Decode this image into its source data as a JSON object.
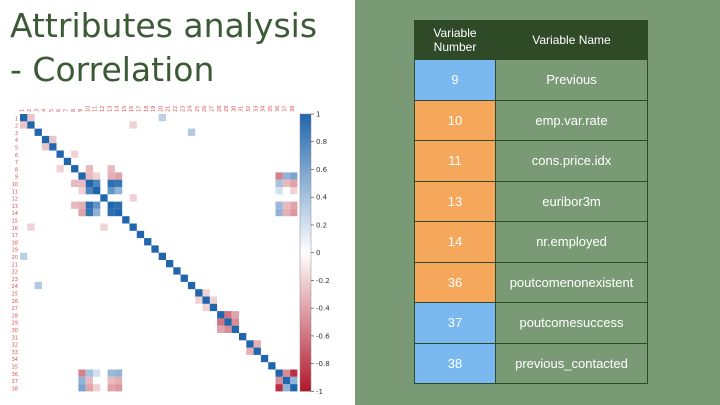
{
  "slide": {
    "title_line1": "Attributes analysis",
    "title_line2": "- Correlation"
  },
  "table": {
    "headers": {
      "number": "Variable Number",
      "name": "Variable Name"
    },
    "rows": [
      {
        "number": "9",
        "name": "Previous",
        "color": "#7ab8f0"
      },
      {
        "number": "10",
        "name": "emp.var.rate",
        "color": "#f5a75c"
      },
      {
        "number": "11",
        "name": "cons.price.idx",
        "color": "#f5a75c"
      },
      {
        "number": "13",
        "name": "euribor3m",
        "color": "#f5a75c"
      },
      {
        "number": "14",
        "name": "nr.employed",
        "color": "#f5a75c"
      },
      {
        "number": "36",
        "name": "poutcomenonexistent",
        "color": "#f5a75c"
      },
      {
        "number": "37",
        "name": "poutcomesuccess",
        "color": "#7ab8f0"
      },
      {
        "number": "38",
        "name": "previous_contacted",
        "color": "#7ab8f0"
      }
    ]
  },
  "chart_data": {
    "type": "heatmap",
    "labels": [
      "1",
      "2",
      "3",
      "4",
      "5",
      "6",
      "7",
      "8",
      "9",
      "10",
      "11",
      "12",
      "13",
      "14",
      "15",
      "16",
      "17",
      "18",
      "19",
      "20",
      "21",
      "22",
      "23",
      "24",
      "25",
      "26",
      "27",
      "28",
      "29",
      "30",
      "31",
      "32",
      "33",
      "34",
      "35",
      "36",
      "37",
      "38"
    ],
    "colorbar_ticks": [
      "1",
      "0.8",
      "0.6",
      "0.4",
      "0.2",
      "0",
      "-0.2",
      "-0.4",
      "-0.6",
      "-0.8",
      "-1"
    ],
    "colorbar_range": [
      -1,
      1
    ],
    "cells": [
      {
        "r": 9,
        "c": 10,
        "v": -0.3
      },
      {
        "r": 9,
        "c": 11,
        "v": -0.2
      },
      {
        "r": 9,
        "c": 13,
        "v": -0.35
      },
      {
        "r": 9,
        "c": 14,
        "v": -0.4
      },
      {
        "r": 9,
        "c": 36,
        "v": -0.55
      },
      {
        "r": 9,
        "c": 37,
        "v": 0.5
      },
      {
        "r": 9,
        "c": 38,
        "v": 0.6
      },
      {
        "r": 10,
        "c": 11,
        "v": 0.8
      },
      {
        "r": 10,
        "c": 13,
        "v": 0.95
      },
      {
        "r": 10,
        "c": 14,
        "v": 0.9
      },
      {
        "r": 10,
        "c": 36,
        "v": 0.4
      },
      {
        "r": 10,
        "c": 37,
        "v": -0.3
      },
      {
        "r": 10,
        "c": 38,
        "v": -0.4
      },
      {
        "r": 11,
        "c": 13,
        "v": 0.7
      },
      {
        "r": 11,
        "c": 14,
        "v": 0.5
      },
      {
        "r": 11,
        "c": 36,
        "v": 0.2
      },
      {
        "r": 11,
        "c": 38,
        "v": -0.2
      },
      {
        "r": 13,
        "c": 14,
        "v": 0.95
      },
      {
        "r": 13,
        "c": 36,
        "v": 0.45
      },
      {
        "r": 13,
        "c": 37,
        "v": -0.3
      },
      {
        "r": 13,
        "c": 38,
        "v": -0.4
      },
      {
        "r": 14,
        "c": 36,
        "v": 0.5
      },
      {
        "r": 14,
        "c": 37,
        "v": -0.35
      },
      {
        "r": 14,
        "c": 38,
        "v": -0.45
      },
      {
        "r": 36,
        "c": 37,
        "v": -0.5
      },
      {
        "r": 36,
        "c": 38,
        "v": -0.9
      },
      {
        "r": 37,
        "c": 38,
        "v": 0.5
      },
      {
        "r": 28,
        "c": 29,
        "v": -0.6
      },
      {
        "r": 28,
        "c": 30,
        "v": -0.4
      },
      {
        "r": 29,
        "c": 30,
        "v": -0.5
      },
      {
        "r": 32,
        "c": 33,
        "v": -0.35
      },
      {
        "r": 1,
        "c": 2,
        "v": -0.25
      },
      {
        "r": 1,
        "c": 20,
        "v": 0.3
      },
      {
        "r": 3,
        "c": 24,
        "v": 0.35
      },
      {
        "r": 8,
        "c": 10,
        "v": -0.3
      },
      {
        "r": 8,
        "c": 13,
        "v": -0.3
      },
      {
        "r": 4,
        "c": 5,
        "v": -0.25
      },
      {
        "r": 6,
        "c": 8,
        "v": -0.2
      },
      {
        "r": 16,
        "c": 12,
        "v": -0.2
      },
      {
        "r": 25,
        "c": 26,
        "v": -0.2
      },
      {
        "r": 26,
        "c": 27,
        "v": -0.2
      },
      {
        "r": 2,
        "c": 16,
        "v": -0.2
      }
    ]
  }
}
